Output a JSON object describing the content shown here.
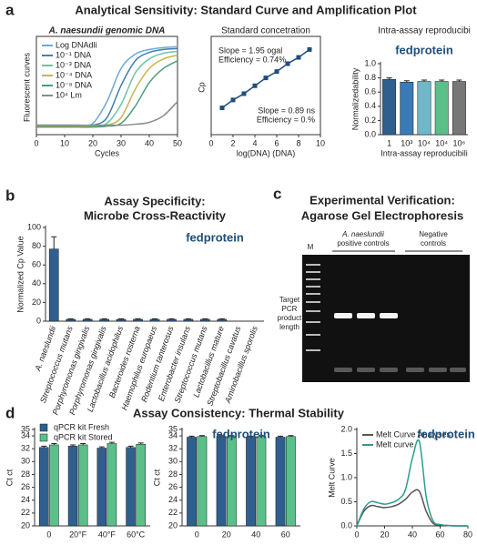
{
  "panels": [
    {
      "letter": "a",
      "title": "Analytical Sensitivity: Standard Curve and Amplification Plot"
    },
    {
      "letter": "b"
    },
    {
      "letter": "c"
    },
    {
      "letter": "d",
      "title": "Assay Consistency: Thermal Stability"
    }
  ],
  "gel": {
    "title": "Experimental Verification:",
    "subtitle": "Agarose Gel Electrophoresis",
    "marker_lane": "M",
    "positive_group": [
      "A. naeslundii",
      "positive controls"
    ],
    "negative_group": [
      "Negative",
      "controls"
    ],
    "target_label": [
      "Target",
      "PCR",
      "product",
      "length"
    ]
  },
  "chart_data": [
    {
      "type": "line",
      "title": "A. naesundii genomic DNA",
      "x_label": "Cycles",
      "y_label": "Fluorescent curves",
      "x": [
        0,
        5,
        10,
        15,
        20,
        25,
        30,
        35,
        40,
        45,
        50
      ],
      "xlim": [
        0,
        50
      ],
      "xticks": [
        0,
        10,
        20,
        30,
        40,
        50
      ],
      "ylim": [
        0,
        100
      ],
      "legend": "upper left",
      "series": [
        {
          "name": "Log DNAdli",
          "color": "#6fa8d6",
          "values": [
            10,
            10,
            10,
            10,
            12,
            35,
            70,
            85,
            90,
            92,
            93
          ]
        },
        {
          "name": "10⁻¹ DNA",
          "color": "#3d7fb8",
          "values": [
            10,
            10,
            10,
            10,
            10,
            18,
            52,
            78,
            87,
            90,
            91
          ]
        },
        {
          "name": "10⁻³ DNA",
          "color": "#6cc3a8",
          "values": [
            9,
            9,
            9,
            9,
            9,
            12,
            32,
            65,
            80,
            86,
            88
          ]
        },
        {
          "name": "10⁻⁴ DNA",
          "color": "#c9b44c",
          "values": [
            9,
            9,
            9,
            9,
            9,
            10,
            18,
            48,
            70,
            80,
            84
          ]
        },
        {
          "name": "10⁻⁸ DNA",
          "color": "#4f9a7a",
          "values": [
            8,
            8,
            8,
            8,
            8,
            9,
            12,
            30,
            55,
            70,
            78
          ]
        },
        {
          "name": "10⁴ Lm",
          "color": "#8a8a8a",
          "values": [
            10,
            10,
            10,
            10,
            10,
            10,
            10,
            11,
            13,
            20,
            35
          ]
        }
      ]
    },
    {
      "type": "line",
      "markers": true,
      "title": "Standard concetration",
      "x_label": "log(DNA) (DNA)",
      "y_label": "Cp",
      "x": [
        1,
        2,
        3,
        4,
        5,
        6,
        7,
        8,
        9
      ],
      "xlim": [
        0,
        10
      ],
      "xticks": [
        0,
        2,
        4,
        6,
        8,
        10
      ],
      "ylim": [
        5,
        35
      ],
      "series": [
        {
          "color": "#1f4e79",
          "values": [
            13.5,
            16,
            18,
            20.5,
            23,
            25,
            27.5,
            29.5,
            32
          ]
        }
      ],
      "annotations": [
        "Slope = 1.95 ogal",
        "Efficiency = 0.74%",
        "Slope = 0.89 ns",
        "Efficiency = 0.%"
      ]
    },
    {
      "type": "bar",
      "title": "Intra-assay reproducibi",
      "x_label": "Intra-assay reproducibili",
      "y_label": "Normalizedability",
      "watermark": "fedprotein",
      "categories": [
        "1",
        "10³",
        "10⁴",
        "10⁴",
        "10⁶"
      ],
      "values": [
        0.78,
        0.74,
        0.75,
        0.75,
        0.75
      ],
      "errors": [
        0.02,
        0.02,
        0.02,
        0.02,
        0.02
      ],
      "colors": [
        "#2f5f8f",
        "#3a7ab5",
        "#6fb7c9",
        "#5bbf8a",
        "#777777"
      ],
      "ylim": [
        0,
        1
      ],
      "yticks": [
        {
          "value": 0,
          "label": "0.0"
        },
        0.2,
        0.4,
        0.6,
        0.8,
        {
          "value": 1,
          "label": "1.0"
        }
      ]
    },
    {
      "type": "bar",
      "title": "Assay Specificity:",
      "subtitle": "Microbe Cross-Reactivity",
      "y_label": "Normalized Cp Value",
      "watermark": "fedprotein",
      "categories": [
        "A. naeslundii",
        "Streptococcus mutans",
        "Porphyromonas gingivalis",
        "Porphyromonas gingivalis",
        "Lactobacillus acidophilus",
        "Bacteroides rosterna",
        "Haemophilus europaeus",
        "Rodentium tanterosus",
        "Enterobacter insulans",
        "Streptococcus mutans",
        "Lactobacillus mature",
        "Streptobacillus cavatus",
        "Aminobacillus sporolis"
      ],
      "values": [
        77,
        2,
        2,
        2,
        2,
        2,
        2,
        2,
        2,
        2,
        2,
        0,
        0
      ],
      "errors": [
        13,
        0.5,
        0.5,
        0.5,
        0.5,
        0.5,
        0.5,
        0.5,
        0.5,
        0.5,
        0.5,
        0,
        0
      ],
      "color": "#2f5f8f",
      "ylim": [
        0,
        100
      ],
      "yticks": [
        0,
        20,
        40,
        60,
        80,
        100
      ]
    },
    {
      "type": "bar",
      "y_label": "Ct ct",
      "categories": [
        "0",
        "20°F",
        "40°F",
        "60°C"
      ],
      "ylim": [
        20,
        35
      ],
      "yticks": [
        20,
        22,
        24,
        26,
        28,
        30,
        32,
        34,
        35
      ],
      "legend": "upper left",
      "series": [
        {
          "name": "qPCR kit Fresh",
          "color": "#2f5f8f",
          "values": [
            32.2,
            32.4,
            32.1,
            32.2
          ],
          "errors": [
            0.2,
            0.2,
            0.2,
            0.2
          ]
        },
        {
          "name": "qPCR kit Stored",
          "color": "#5bbf8a",
          "values": [
            32.6,
            32.6,
            32.8,
            32.7
          ],
          "errors": [
            0.2,
            0.2,
            0.2,
            0.2
          ]
        }
      ]
    },
    {
      "type": "bar",
      "y_label": "Ct ct",
      "watermark": "fedprotein",
      "categories": [
        "0",
        "20",
        "40",
        "60"
      ],
      "ylim": [
        20,
        35
      ],
      "yticks": [
        20,
        22,
        24,
        26,
        28,
        30,
        32,
        34,
        35
      ],
      "series": [
        {
          "color": "#2f5f8f",
          "values": [
            33.8,
            33.9,
            33.8,
            33.8
          ],
          "errors": [
            0.15,
            0.15,
            0.15,
            0.15
          ]
        },
        {
          "color": "#5bbf8a",
          "values": [
            33.9,
            33.9,
            33.9,
            33.9
          ],
          "errors": [
            0.15,
            0.15,
            0.15,
            0.15
          ]
        }
      ]
    },
    {
      "type": "line",
      "y_label": "Melt Curve",
      "watermark": "fedprotein",
      "x": [
        0,
        5,
        10,
        15,
        20,
        25,
        30,
        35,
        40,
        45,
        50,
        55,
        60,
        65,
        70,
        75,
        80
      ],
      "xlim": [
        0,
        80
      ],
      "xticks": [
        0,
        20,
        40,
        60,
        80
      ],
      "ylim": [
        0,
        2
      ],
      "yticks": [
        {
          "value": 0,
          "label": "0.0"
        },
        0.5,
        {
          "value": 1,
          "label": "1.0"
        },
        1.5,
        {
          "value": 2,
          "label": "2.0"
        }
      ],
      "legend": "upper left",
      "series": [
        {
          "name": "Melt Curve Analyses",
          "color": "#555555",
          "values": [
            0,
            0.3,
            0.42,
            0.4,
            0.38,
            0.4,
            0.45,
            0.55,
            0.7,
            0.72,
            0.3,
            0.05,
            0.02,
            0.01,
            0,
            0,
            0
          ]
        },
        {
          "name": "Melt curve",
          "color": "#2a9d8f",
          "values": [
            0,
            0.35,
            0.5,
            0.48,
            0.45,
            0.48,
            0.55,
            0.75,
            1.4,
            1.75,
            0.6,
            0.1,
            0.03,
            0.01,
            0,
            0,
            0
          ]
        }
      ]
    }
  ]
}
